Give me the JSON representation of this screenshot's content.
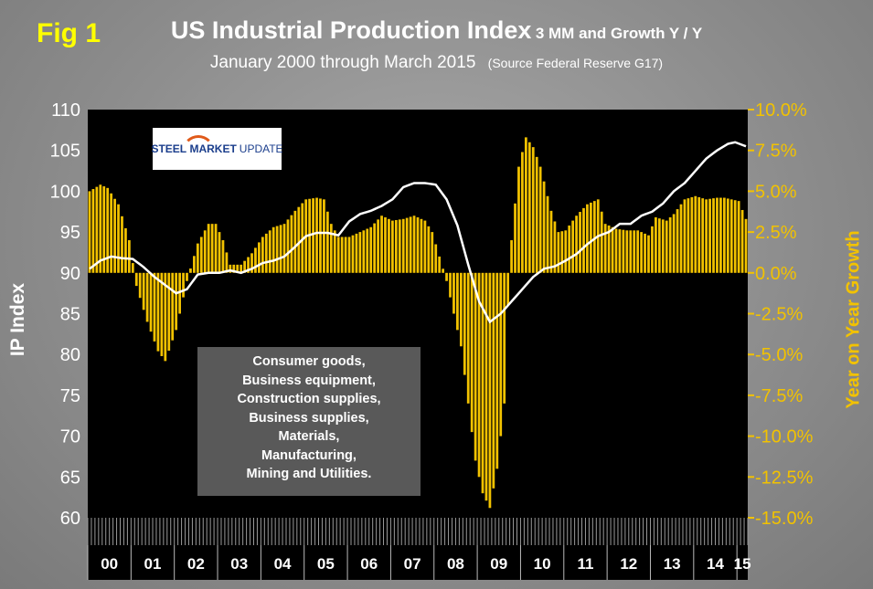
{
  "header": {
    "fig_label": "Fig 1",
    "title_main": "US Industrial Production Index",
    "title_suffix": "3 MM and Growth Y / Y",
    "subtitle": "January 2000 through March 2015",
    "source": "(Source Federal Reserve G17)"
  },
  "logo": {
    "word1": "STEEL",
    "word2": "MARKET",
    "word3": "UPDATE"
  },
  "annotation": {
    "lines": [
      "Consumer goods,",
      "Business equipment,",
      "Construction supplies,",
      "Business supplies,",
      "Materials,",
      "Manufacturing,",
      "Mining and Utilities."
    ]
  },
  "colors": {
    "bars": "#f2c200",
    "line": "#ffffff",
    "plot_bg": "#000000",
    "right_axis": "#f2c200",
    "left_axis": "#ffffff"
  },
  "chart_data": {
    "type": "bar+line",
    "title": "US Industrial Production Index 3 MM and Growth Y / Y",
    "ylabel_left": "IP Index",
    "ylabel_right": "Year on Year Growth",
    "ylim_left": [
      60,
      110
    ],
    "yticks_left": [
      "60",
      "65",
      "70",
      "75",
      "80",
      "85",
      "90",
      "95",
      "100",
      "105",
      "110"
    ],
    "ylim_right": [
      -15.0,
      10.0
    ],
    "yticks_right": [
      "-15.0%",
      "-12.5%",
      "-10.0%",
      "-7.5%",
      "-5.0%",
      "-2.5%",
      "0.0%",
      "2.5%",
      "5.0%",
      "7.5%",
      "10.0%"
    ],
    "year_labels": [
      "00",
      "01",
      "02",
      "03",
      "04",
      "05",
      "06",
      "07",
      "08",
      "09",
      "10",
      "11",
      "12",
      "13",
      "14",
      "15"
    ],
    "months": 183,
    "series": [
      {
        "name": "Growth Y/Y (bars, %)",
        "axis": "right",
        "keypoints": [
          [
            0,
            5.0
          ],
          [
            3,
            5.4
          ],
          [
            5,
            5.2
          ],
          [
            8,
            4.2
          ],
          [
            11,
            2.0
          ],
          [
            13,
            -0.8
          ],
          [
            16,
            -3.0
          ],
          [
            19,
            -4.8
          ],
          [
            21,
            -5.4
          ],
          [
            24,
            -3.5
          ],
          [
            27,
            -0.5
          ],
          [
            30,
            1.8
          ],
          [
            33,
            3.0
          ],
          [
            35,
            3.0
          ],
          [
            37,
            2.0
          ],
          [
            39,
            0.5
          ],
          [
            42,
            0.5
          ],
          [
            45,
            1.2
          ],
          [
            48,
            2.2
          ],
          [
            51,
            2.8
          ],
          [
            54,
            3.0
          ],
          [
            57,
            3.8
          ],
          [
            60,
            4.5
          ],
          [
            63,
            4.6
          ],
          [
            65,
            4.5
          ],
          [
            67,
            3.0
          ],
          [
            69,
            2.2
          ],
          [
            72,
            2.2
          ],
          [
            75,
            2.5
          ],
          [
            78,
            2.8
          ],
          [
            81,
            3.5
          ],
          [
            84,
            3.2
          ],
          [
            87,
            3.3
          ],
          [
            90,
            3.5
          ],
          [
            93,
            3.2
          ],
          [
            95,
            2.5
          ],
          [
            97,
            1.0
          ],
          [
            99,
            -0.5
          ],
          [
            101,
            -2.5
          ],
          [
            103,
            -4.5
          ],
          [
            105,
            -8.0
          ],
          [
            107,
            -11.5
          ],
          [
            109,
            -13.5
          ],
          [
            111,
            -14.4
          ],
          [
            113,
            -12.0
          ],
          [
            115,
            -8.0
          ],
          [
            116,
            -2.0
          ],
          [
            117,
            2.0
          ],
          [
            119,
            6.5
          ],
          [
            121,
            8.3
          ],
          [
            123,
            7.7
          ],
          [
            125,
            6.5
          ],
          [
            128,
            3.8
          ],
          [
            130,
            2.5
          ],
          [
            132,
            2.6
          ],
          [
            135,
            3.5
          ],
          [
            138,
            4.2
          ],
          [
            141,
            4.5
          ],
          [
            143,
            3.0
          ],
          [
            146,
            2.7
          ],
          [
            149,
            2.6
          ],
          [
            152,
            2.6
          ],
          [
            155,
            2.3
          ],
          [
            157,
            3.4
          ],
          [
            160,
            3.2
          ],
          [
            162,
            3.6
          ],
          [
            165,
            4.5
          ],
          [
            168,
            4.7
          ],
          [
            171,
            4.5
          ],
          [
            174,
            4.6
          ],
          [
            176,
            4.6
          ],
          [
            180,
            4.4
          ],
          [
            182,
            3.3
          ]
        ]
      },
      {
        "name": "IP Index 3MM (line)",
        "axis": "left",
        "keypoints": [
          [
            0,
            90.5
          ],
          [
            3,
            91.5
          ],
          [
            6,
            92.0
          ],
          [
            9,
            91.8
          ],
          [
            12,
            91.7
          ],
          [
            15,
            90.7
          ],
          [
            18,
            89.5
          ],
          [
            21,
            88.5
          ],
          [
            24,
            87.5
          ],
          [
            27,
            88.0
          ],
          [
            30,
            89.8
          ],
          [
            33,
            90.0
          ],
          [
            36,
            90.0
          ],
          [
            39,
            90.3
          ],
          [
            42,
            90.0
          ],
          [
            45,
            90.5
          ],
          [
            48,
            91.2
          ],
          [
            51,
            91.5
          ],
          [
            54,
            92.0
          ],
          [
            57,
            93.2
          ],
          [
            60,
            94.5
          ],
          [
            63,
            94.9
          ],
          [
            66,
            94.9
          ],
          [
            69,
            94.6
          ],
          [
            72,
            96.3
          ],
          [
            75,
            97.2
          ],
          [
            78,
            97.6
          ],
          [
            81,
            98.2
          ],
          [
            84,
            99.0
          ],
          [
            87,
            100.5
          ],
          [
            90,
            101.0
          ],
          [
            93,
            101.0
          ],
          [
            96,
            100.8
          ],
          [
            99,
            99.0
          ],
          [
            102,
            95.8
          ],
          [
            105,
            91.0
          ],
          [
            108,
            86.5
          ],
          [
            111,
            84.0
          ],
          [
            114,
            85.0
          ],
          [
            117,
            86.5
          ],
          [
            120,
            88.0
          ],
          [
            123,
            89.5
          ],
          [
            126,
            90.5
          ],
          [
            129,
            90.8
          ],
          [
            132,
            91.5
          ],
          [
            135,
            92.3
          ],
          [
            138,
            93.5
          ],
          [
            141,
            94.5
          ],
          [
            144,
            95.0
          ],
          [
            147,
            96.0
          ],
          [
            150,
            96.0
          ],
          [
            153,
            97.0
          ],
          [
            156,
            97.5
          ],
          [
            159,
            98.5
          ],
          [
            162,
            100.0
          ],
          [
            165,
            101.0
          ],
          [
            168,
            102.5
          ],
          [
            171,
            104.0
          ],
          [
            174,
            105.0
          ],
          [
            177,
            105.8
          ],
          [
            179,
            106.0
          ],
          [
            182,
            105.5
          ]
        ]
      }
    ]
  }
}
